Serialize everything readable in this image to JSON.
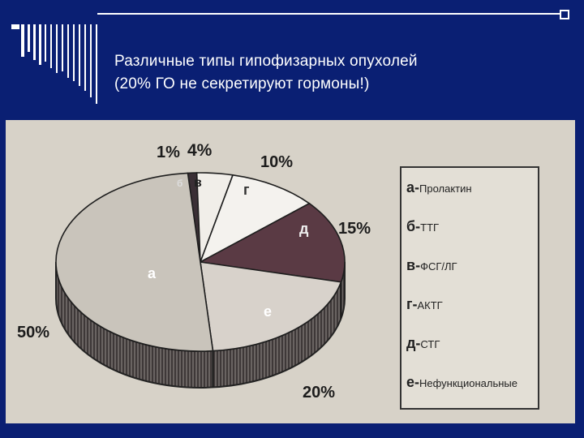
{
  "header": {
    "title_line1": "Различные типы гипофизарных опухолей",
    "title_line2": "(20% ГО не секретируют гормоны!)"
  },
  "colors": {
    "background": "#0a1f73",
    "title_text": "#ffffff",
    "slice_a": "#c9c4bb",
    "slice_b": "#3a2f35",
    "slice_v": "#f1eee9",
    "slice_g": "#f4f2ee",
    "slice_d": "#5a3a44",
    "slice_e": "#d8d2cb"
  },
  "chart_data": {
    "type": "pie",
    "style": "3d",
    "title": "",
    "slices": [
      {
        "key": "a",
        "label": "а",
        "legend": "Пролактин",
        "value": 50,
        "pct_label": "50%"
      },
      {
        "key": "b",
        "label": "б",
        "legend": "ТТГ",
        "value": 1,
        "pct_label": "1%"
      },
      {
        "key": "v",
        "label": "в",
        "legend": "ФСГ/ЛГ",
        "value": 4,
        "pct_label": "4%"
      },
      {
        "key": "g",
        "label": "г",
        "legend": "АКТГ",
        "value": 10,
        "pct_label": "10%"
      },
      {
        "key": "d",
        "label": "д",
        "legend": "СТГ",
        "value": 15,
        "pct_label": "15%"
      },
      {
        "key": "e",
        "label": "е",
        "legend": "Нефункциональные",
        "value": 20,
        "pct_label": "20%"
      }
    ],
    "legend_position": "right"
  }
}
